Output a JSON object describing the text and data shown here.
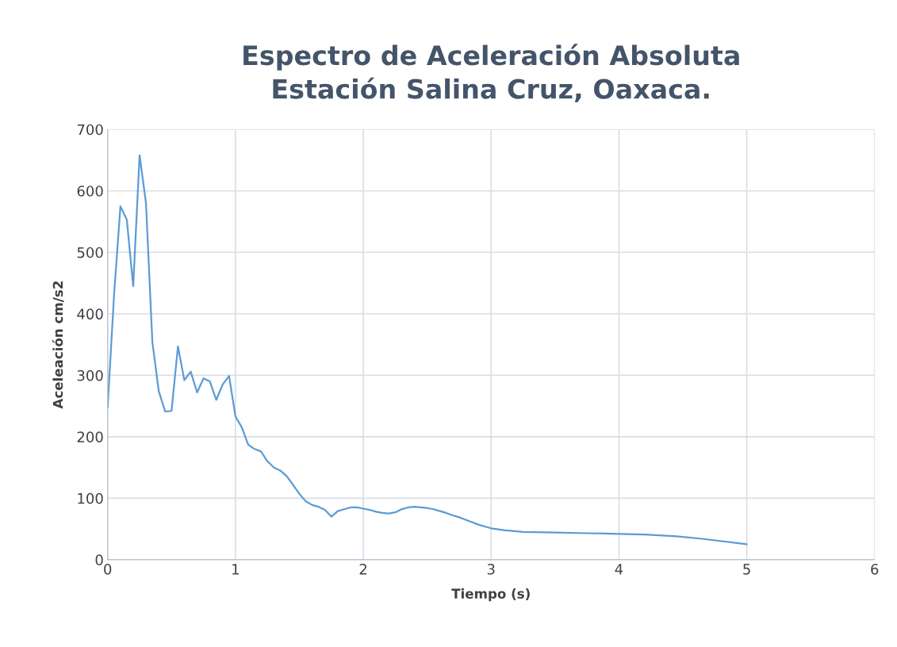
{
  "chart_data": {
    "type": "line",
    "title": "Espectro de Aceleración Absoluta\nEstación Salina Cruz, Oaxaca.",
    "xlabel": "Tiempo (s)",
    "ylabel": "Aceleación cm/s2",
    "xlim": [
      0,
      6
    ],
    "xticks": [
      0,
      1,
      2,
      3,
      4,
      5,
      6
    ],
    "ylim": [
      0,
      700
    ],
    "yticks": [
      0,
      100,
      200,
      300,
      400,
      500,
      600,
      700
    ],
    "grid": true,
    "marker": "none",
    "line_style": "solid",
    "series": [
      {
        "color": "#5b9bd5",
        "x": [
          0,
          0.05,
          0.1,
          0.15,
          0.2,
          0.25,
          0.3,
          0.35,
          0.4,
          0.45,
          0.5,
          0.55,
          0.6,
          0.65,
          0.7,
          0.75,
          0.8,
          0.85,
          0.9,
          0.95,
          1.0,
          1.05,
          1.1,
          1.15,
          1.2,
          1.25,
          1.3,
          1.35,
          1.4,
          1.45,
          1.5,
          1.55,
          1.6,
          1.65,
          1.7,
          1.75,
          1.8,
          1.85,
          1.9,
          1.95,
          2.0,
          2.05,
          2.1,
          2.15,
          2.2,
          2.25,
          2.3,
          2.35,
          2.4,
          2.45,
          2.5,
          2.55,
          2.6,
          2.65,
          2.7,
          2.75,
          2.8,
          2.85,
          2.9,
          2.95,
          3.0,
          3.1,
          3.25,
          3.5,
          3.75,
          4.0,
          4.2,
          4.45,
          4.65,
          5.0
        ],
        "values": [
          248,
          430,
          575,
          553,
          445,
          658,
          580,
          354,
          274,
          241,
          242,
          347,
          292,
          306,
          272,
          295,
          290,
          260,
          285,
          299,
          233,
          215,
          187,
          180,
          176,
          160,
          150,
          145,
          136,
          122,
          107,
          95,
          89,
          86,
          81,
          70,
          79,
          82,
          85,
          85,
          83,
          81,
          78,
          76,
          75,
          77,
          82,
          85,
          86,
          85,
          84,
          82,
          79,
          76,
          72,
          69,
          65,
          61,
          57,
          54,
          51,
          48,
          45,
          44,
          43,
          42,
          41,
          38,
          34,
          25
        ]
      }
    ]
  }
}
